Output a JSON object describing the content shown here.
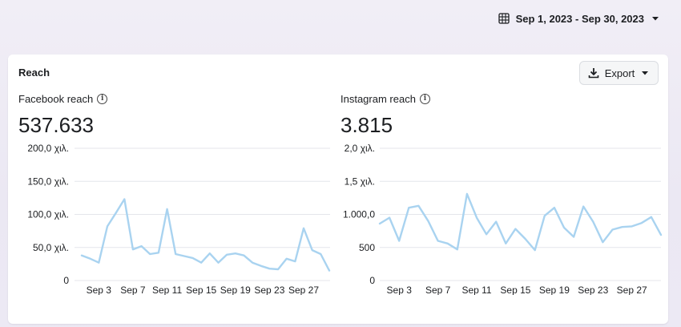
{
  "header": {
    "date_range": "Sep 1, 2023 - Sep 30, 2023",
    "calendar_icon": "calendar-grid-icon",
    "dropdown_icon": "caret-down-icon"
  },
  "card": {
    "title": "Reach",
    "export_label": "Export",
    "export_icon": "download-icon"
  },
  "colors": {
    "line": "#a9d3f0",
    "grid": "#e4e6eb"
  },
  "facebook": {
    "label": "Facebook reach",
    "value": "537.633",
    "chart_data": {
      "type": "line",
      "x_tick_labels": [
        "Sep 3",
        "Sep 7",
        "Sep 11",
        "Sep 15",
        "Sep 19",
        "Sep 23",
        "Sep 27"
      ],
      "y_tick_labels": [
        "200,0 χιλ.",
        "150,0 χιλ.",
        "100,0 χιλ.",
        "50,0 χιλ.",
        "0"
      ],
      "ylim": [
        0,
        200000
      ],
      "x": [
        1,
        2,
        3,
        4,
        5,
        6,
        7,
        8,
        9,
        10,
        11,
        12,
        13,
        14,
        15,
        16,
        17,
        18,
        19,
        20,
        21,
        22,
        23,
        24,
        25,
        26,
        27,
        28,
        29,
        30
      ],
      "values": [
        38000,
        33000,
        27000,
        82000,
        102000,
        123000,
        47000,
        52000,
        40000,
        42000,
        108000,
        40000,
        37000,
        34000,
        27000,
        41000,
        27000,
        39000,
        41000,
        38000,
        27000,
        22000,
        18000,
        17000,
        33000,
        29000,
        79000,
        46000,
        40000,
        15000
      ],
      "grid": true
    }
  },
  "instagram": {
    "label": "Instagram reach",
    "value": "3.815",
    "chart_data": {
      "type": "line",
      "x_tick_labels": [
        "Sep 3",
        "Sep 7",
        "Sep 11",
        "Sep 15",
        "Sep 19",
        "Sep 23",
        "Sep 27"
      ],
      "y_tick_labels": [
        "2,0 χιλ.",
        "1,5 χιλ.",
        "1.000,0",
        "500",
        "0"
      ],
      "ylim": [
        0,
        2000
      ],
      "x": [
        1,
        2,
        3,
        4,
        5,
        6,
        7,
        8,
        9,
        10,
        11,
        12,
        13,
        14,
        15,
        16,
        17,
        18,
        19,
        20,
        21,
        22,
        23,
        24,
        25,
        26,
        27,
        28,
        29,
        30
      ],
      "values": [
        860,
        950,
        600,
        1100,
        1130,
        900,
        600,
        560,
        470,
        1310,
        950,
        700,
        890,
        560,
        780,
        630,
        460,
        980,
        1100,
        800,
        660,
        1120,
        890,
        580,
        770,
        810,
        820,
        870,
        960,
        690
      ],
      "grid": true
    }
  }
}
